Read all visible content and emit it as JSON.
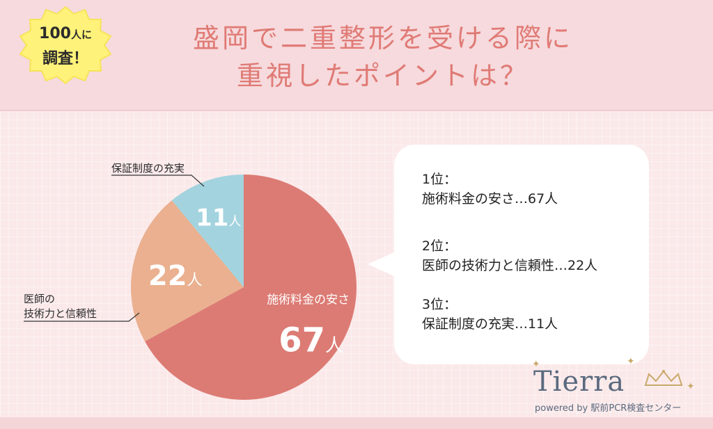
{
  "badge": {
    "line1_big": "100",
    "line1_small": "人に",
    "line2": "調査！"
  },
  "title": {
    "line1": "盛岡で二重整形を受ける際に",
    "line2": "重視したポイントは？"
  },
  "chart_data": {
    "type": "pie",
    "slices": [
      {
        "label": "施術料金の安さ",
        "value": 67,
        "display": "67",
        "unit": "人",
        "color": "#dc7b74"
      },
      {
        "label": "医師の技術力と信頼性",
        "value": 22,
        "display": "22",
        "unit": "人",
        "color": "#eab08f"
      },
      {
        "label": "保証制度の充実",
        "value": 11,
        "display": "11",
        "unit": "人",
        "color": "#a3d3de"
      }
    ]
  },
  "callouts": {
    "hosho": "保証制度の充実",
    "ishi_line1": "医師の",
    "ishi_line2": "技術力と信頼性"
  },
  "ranking": [
    {
      "rank": "1位：",
      "text": "施術料金の安さ…67人"
    },
    {
      "rank": "2位：",
      "text": "医師の技術力と信頼性…22人"
    },
    {
      "rank": "3位：",
      "text": "保証制度の充実…11人"
    }
  ],
  "logo": {
    "word": "Tierra",
    "sub": "powered by 駅前PCR検査センター"
  },
  "colors": {
    "title": "#e07a75",
    "badge": "#fff27a",
    "header": "#f6dadd",
    "background": "#fbe9ea"
  }
}
